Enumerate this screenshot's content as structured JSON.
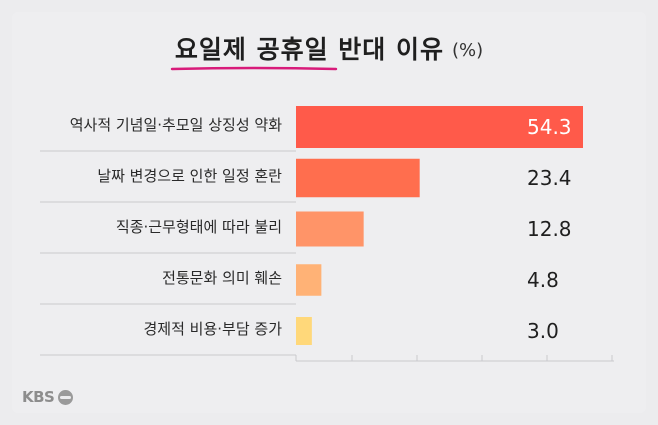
{
  "header": {
    "title": "요일제 공휴일 반대 이유",
    "unit": "(%)"
  },
  "branding": {
    "logo_text": "KBS"
  },
  "colors": {
    "bars": [
      "#ff5a4a",
      "#ff6e4e",
      "#ff9468",
      "#ffb276",
      "#ffd87a"
    ],
    "underline": "#d81b7a"
  },
  "chart_data": {
    "type": "bar",
    "orientation": "horizontal",
    "title": "요일제 공휴일 반대 이유",
    "unit": "(%)",
    "categories": [
      "역사적 기념일·추모일 상징성 약화",
      "날짜 변경으로 인한 일정 혼란",
      "직종·근무형태에 따라 불리",
      "전통문화 의미 훼손",
      "경제적 비용·부담 증가"
    ],
    "values": [
      54.3,
      23.4,
      12.8,
      4.8,
      3.0
    ],
    "value_labels": [
      "54.3",
      "23.4",
      "12.8",
      "4.8",
      "3.0"
    ],
    "xlim": [
      0,
      60
    ],
    "grid": false,
    "legend": "none"
  }
}
